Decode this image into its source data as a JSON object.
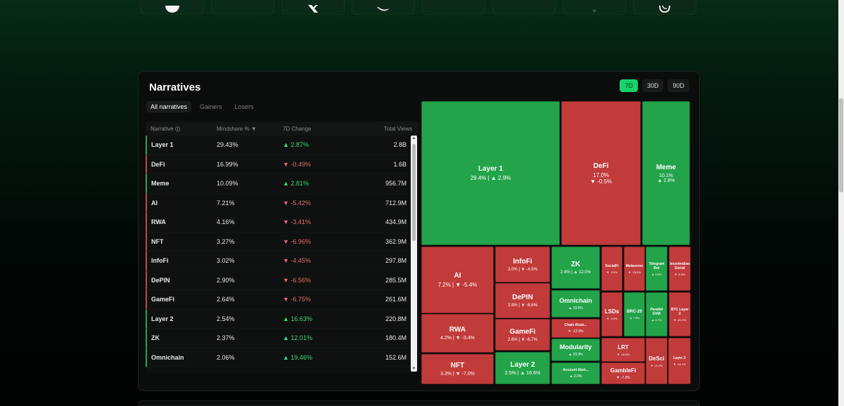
{
  "panel": {
    "title": "Narratives"
  },
  "periods": [
    {
      "label": "7D",
      "active": true
    },
    {
      "label": "30D",
      "active": false
    },
    {
      "label": "90D",
      "active": false
    }
  ],
  "filters": [
    {
      "label": "All narratives",
      "active": true
    },
    {
      "label": "Gainers",
      "active": false
    },
    {
      "label": "Losers",
      "active": false
    }
  ],
  "table": {
    "headers": {
      "narrative": "Narrative",
      "mindshare": "Mindshare %",
      "change": "7D Change",
      "views": "Total Views"
    },
    "rows": [
      {
        "name": "Layer 1",
        "mindshare": "29.43%",
        "change": "2.87%",
        "dir": "up",
        "views": "2.8B"
      },
      {
        "name": "DeFi",
        "mindshare": "16.99%",
        "change": "-0.49%",
        "dir": "down",
        "views": "1.6B"
      },
      {
        "name": "Meme",
        "mindshare": "10.09%",
        "change": "2.81%",
        "dir": "up",
        "views": "956.7M"
      },
      {
        "name": "AI",
        "mindshare": "7.21%",
        "change": "-5.42%",
        "dir": "down",
        "views": "712.9M"
      },
      {
        "name": "RWA",
        "mindshare": "4.16%",
        "change": "-3.41%",
        "dir": "down",
        "views": "434.9M"
      },
      {
        "name": "NFT",
        "mindshare": "3.27%",
        "change": "-6.96%",
        "dir": "down",
        "views": "362.9M"
      },
      {
        "name": "InfoFi",
        "mindshare": "3.02%",
        "change": "-4.45%",
        "dir": "down",
        "views": "297.8M"
      },
      {
        "name": "DePIN",
        "mindshare": "2.90%",
        "change": "-6.56%",
        "dir": "down",
        "views": "285.5M"
      },
      {
        "name": "GameFi",
        "mindshare": "2.64%",
        "change": "-6.75%",
        "dir": "down",
        "views": "261.6M"
      },
      {
        "name": "Layer 2",
        "mindshare": "2.54%",
        "change": "16.63%",
        "dir": "up",
        "views": "220.8M"
      },
      {
        "name": "ZK",
        "mindshare": "2.37%",
        "change": "12.01%",
        "dir": "up",
        "views": "180.4M"
      },
      {
        "name": "Omnichain",
        "mindshare": "2.06%",
        "change": "19.46%",
        "dir": "up",
        "views": "152.6M"
      }
    ]
  },
  "treemap": {
    "cells": [
      {
        "name": "Layer 1",
        "stat": "29.4% | ▲ 2.9%",
        "color": "#23a44a"
      },
      {
        "name": "DeFi",
        "stat": "17.0%",
        "stat2": "▼ -0.5%",
        "color": "#c23b3b"
      },
      {
        "name": "Meme",
        "stat": "10.1%",
        "stat2": "▲ 2.8%",
        "color": "#23a44a"
      },
      {
        "name": "AI",
        "stat": "7.2% | ▼ -5.4%",
        "color": "#c23b3b"
      },
      {
        "name": "InfoFi",
        "stat": "3.0% | ▼ -4.5%",
        "color": "#c23b3b"
      },
      {
        "name": "ZK",
        "stat": "2.4% | ▲ 12.0%",
        "color": "#23a44a"
      },
      {
        "name": "SocialFi",
        "stat": "▼ -3.3%",
        "color": "#c23b3b"
      },
      {
        "name": "Metaverse",
        "stat": "▼ -15.6%",
        "color": "#c23b3b"
      },
      {
        "name": "Telegram Bot",
        "stat": "▲ 5.5%",
        "color": "#23a44a"
      },
      {
        "name": "Decentralized Social",
        "stat": "▼ -6.8%",
        "color": "#c23b3b"
      },
      {
        "name": "DePIN",
        "stat": "2.9% | ▼ -6.6%",
        "color": "#c23b3b"
      },
      {
        "name": "Omnichain",
        "stat": "▲ 19.5%",
        "color": "#23a44a"
      },
      {
        "name": "RWA",
        "stat": "4.2% | ▼ -3.4%",
        "color": "#c23b3b"
      },
      {
        "name": "LSDs",
        "stat": "▼ -3.5%",
        "color": "#c23b3b"
      },
      {
        "name": "BRC-20",
        "stat": "▲ 7.6%",
        "color": "#23a44a"
      },
      {
        "name": "Parallel EVM",
        "stat": "▲ 5.7%",
        "color": "#23a44a"
      },
      {
        "name": "BTC Layer 2",
        "stat": "▼ -20.2%",
        "color": "#c23b3b"
      },
      {
        "name": "GameFi",
        "stat": "2.6% | ▼ -6.7%",
        "color": "#c23b3b"
      },
      {
        "name": "Chain Abstr...",
        "stat": "▼ -12.9%",
        "color": "#c23b3b"
      },
      {
        "name": "Modularity",
        "stat": "▲ 23.3%",
        "color": "#23a44a"
      },
      {
        "name": "LRT",
        "stat": "▼ -16.8%",
        "color": "#c23b3b"
      },
      {
        "name": "DeSci",
        "stat": "▼ -11.2%",
        "color": "#c23b3b"
      },
      {
        "name": "Layer 3",
        "stat": "▼ -16.1%",
        "color": "#c23b3b"
      },
      {
        "name": "NFT",
        "stat": "3.3% | ▼ -7.0%",
        "color": "#c23b3b"
      },
      {
        "name": "Layer 2",
        "stat": "2.5% | ▲ 16.6%",
        "color": "#23a44a"
      },
      {
        "name": "Account Abst...",
        "stat": "▲ 2.0%",
        "color": "#23a44a"
      },
      {
        "name": "GambleFi",
        "stat": "▼ -7.3%",
        "color": "#c23b3b"
      }
    ]
  },
  "icons": {
    "info": "info-icon",
    "sort": "sort-down-icon",
    "up": "▲",
    "down": "▼",
    "scroll_up": "▲",
    "scroll_down": "▼"
  }
}
